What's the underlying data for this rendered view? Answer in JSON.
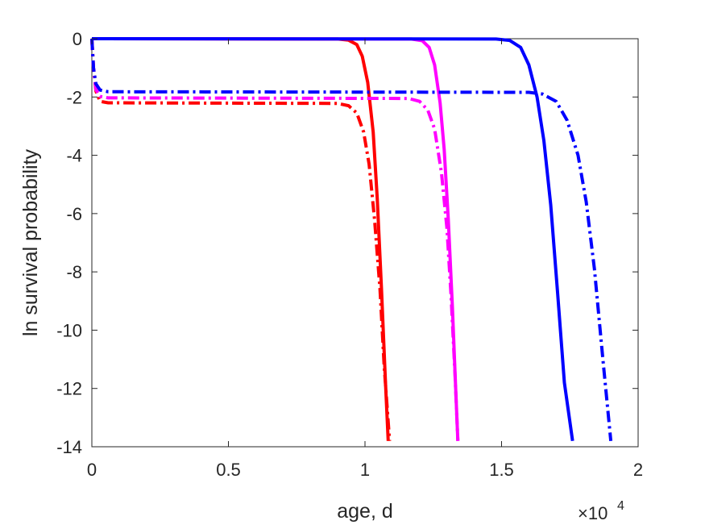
{
  "chart_data": {
    "type": "line",
    "title": "",
    "xlabel": "age, d",
    "ylabel": "ln survival probability",
    "x_exponent_base": "×10",
    "x_exponent_power": "4",
    "xlim": [
      0,
      20000
    ],
    "ylim": [
      -14,
      0
    ],
    "x_ticks": [
      0,
      5000,
      10000,
      15000,
      20000
    ],
    "x_tick_labels": [
      "0",
      "0.5",
      "1",
      "1.5",
      "2"
    ],
    "y_ticks": [
      0,
      -2,
      -4,
      -6,
      -8,
      -10,
      -12,
      -14
    ],
    "y_tick_labels": [
      "0",
      "-2",
      "-4",
      "-6",
      "-8",
      "-10",
      "-12",
      "-14"
    ],
    "grid": false,
    "series": [
      {
        "color": "#ff0000",
        "style": "solid",
        "points": [
          [
            0,
            0
          ],
          [
            9000,
            -0.01
          ],
          [
            9400,
            -0.05
          ],
          [
            9700,
            -0.2
          ],
          [
            9900,
            -0.6
          ],
          [
            10100,
            -1.5
          ],
          [
            10300,
            -3.2
          ],
          [
            10450,
            -5.5
          ],
          [
            10600,
            -8.5
          ],
          [
            10750,
            -11.8
          ],
          [
            10850,
            -13.8
          ]
        ]
      },
      {
        "color": "#ff0000",
        "style": "dashdot",
        "points": [
          [
            0,
            0
          ],
          [
            60,
            -1.0
          ],
          [
            150,
            -1.8
          ],
          [
            300,
            -2.15
          ],
          [
            600,
            -2.2
          ],
          [
            9000,
            -2.22
          ],
          [
            9400,
            -2.3
          ],
          [
            9700,
            -2.55
          ],
          [
            9950,
            -3.2
          ],
          [
            10150,
            -4.3
          ],
          [
            10350,
            -6.2
          ],
          [
            10550,
            -8.6
          ],
          [
            10700,
            -11.2
          ],
          [
            10900,
            -13.8
          ]
        ]
      },
      {
        "color": "#ff00ff",
        "style": "solid",
        "points": [
          [
            0,
            0
          ],
          [
            11700,
            -0.01
          ],
          [
            12100,
            -0.07
          ],
          [
            12350,
            -0.3
          ],
          [
            12550,
            -0.9
          ],
          [
            12750,
            -2.2
          ],
          [
            12900,
            -3.8
          ],
          [
            13050,
            -6.2
          ],
          [
            13200,
            -9.2
          ],
          [
            13320,
            -12.0
          ],
          [
            13400,
            -13.8
          ]
        ]
      },
      {
        "color": "#ff00ff",
        "style": "dashdot",
        "points": [
          [
            0,
            0
          ],
          [
            60,
            -1.0
          ],
          [
            150,
            -1.75
          ],
          [
            300,
            -1.98
          ],
          [
            600,
            -2.03
          ],
          [
            11600,
            -2.05
          ],
          [
            12000,
            -2.15
          ],
          [
            12300,
            -2.45
          ],
          [
            12550,
            -3.1
          ],
          [
            12800,
            -4.6
          ],
          [
            13000,
            -6.5
          ],
          [
            13150,
            -8.8
          ],
          [
            13300,
            -11.6
          ],
          [
            13400,
            -13.8
          ]
        ]
      },
      {
        "color": "#0000ff",
        "style": "solid",
        "points": [
          [
            0,
            0
          ],
          [
            14800,
            -0.01
          ],
          [
            15300,
            -0.06
          ],
          [
            15700,
            -0.3
          ],
          [
            16000,
            -0.9
          ],
          [
            16300,
            -2.0
          ],
          [
            16550,
            -3.5
          ],
          [
            16800,
            -5.7
          ],
          [
            17050,
            -8.7
          ],
          [
            17300,
            -11.8
          ],
          [
            17600,
            -13.8
          ]
        ]
      },
      {
        "color": "#0000ff",
        "style": "dashdot",
        "points": [
          [
            0,
            0
          ],
          [
            60,
            -1.0
          ],
          [
            150,
            -1.55
          ],
          [
            300,
            -1.76
          ],
          [
            600,
            -1.82
          ],
          [
            16000,
            -1.84
          ],
          [
            16500,
            -1.9
          ],
          [
            17000,
            -2.15
          ],
          [
            17400,
            -2.8
          ],
          [
            17800,
            -4.0
          ],
          [
            18100,
            -5.6
          ],
          [
            18400,
            -7.9
          ],
          [
            18700,
            -10.9
          ],
          [
            19000,
            -13.8
          ]
        ]
      }
    ]
  }
}
